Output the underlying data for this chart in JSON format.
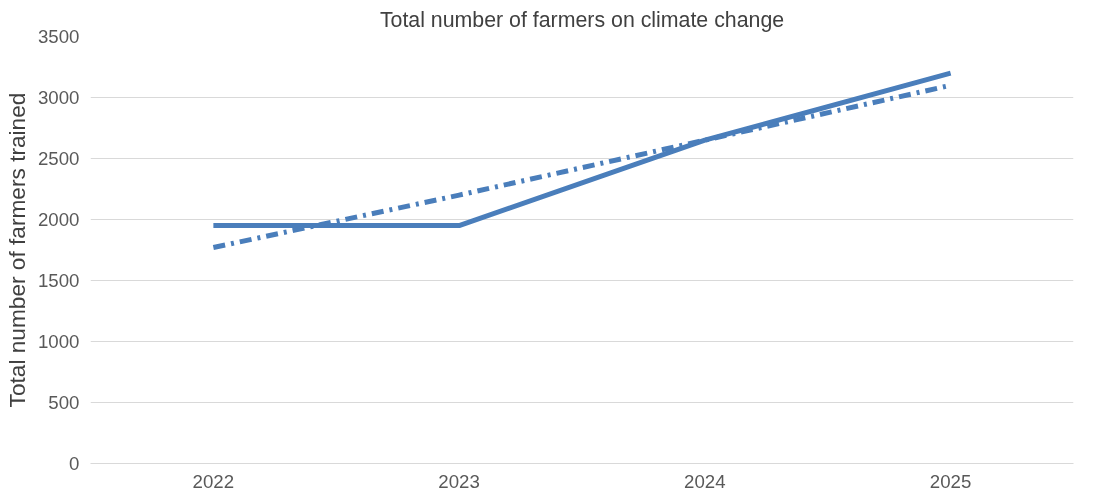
{
  "chart_data": {
    "type": "line",
    "title": "Total number of farmers on climate change",
    "ylabel": "Total number of farmers trained",
    "categories": [
      "2022",
      "2023",
      "2024",
      "2025"
    ],
    "series": [
      {
        "color": "#4a7ebb",
        "values": [
          1950,
          1950,
          2650,
          3200
        ],
        "line_style": "solid"
      },
      {
        "color": "#4a7ebb",
        "values": [
          1770,
          2200,
          2650,
          3100
        ],
        "line_style": "dashed"
      }
    ],
    "ylim": [
      0,
      3500
    ],
    "yticks": [
      0,
      500,
      1000,
      1500,
      2000,
      2500,
      3000,
      3500
    ],
    "grid": "y",
    "marker": "none"
  }
}
